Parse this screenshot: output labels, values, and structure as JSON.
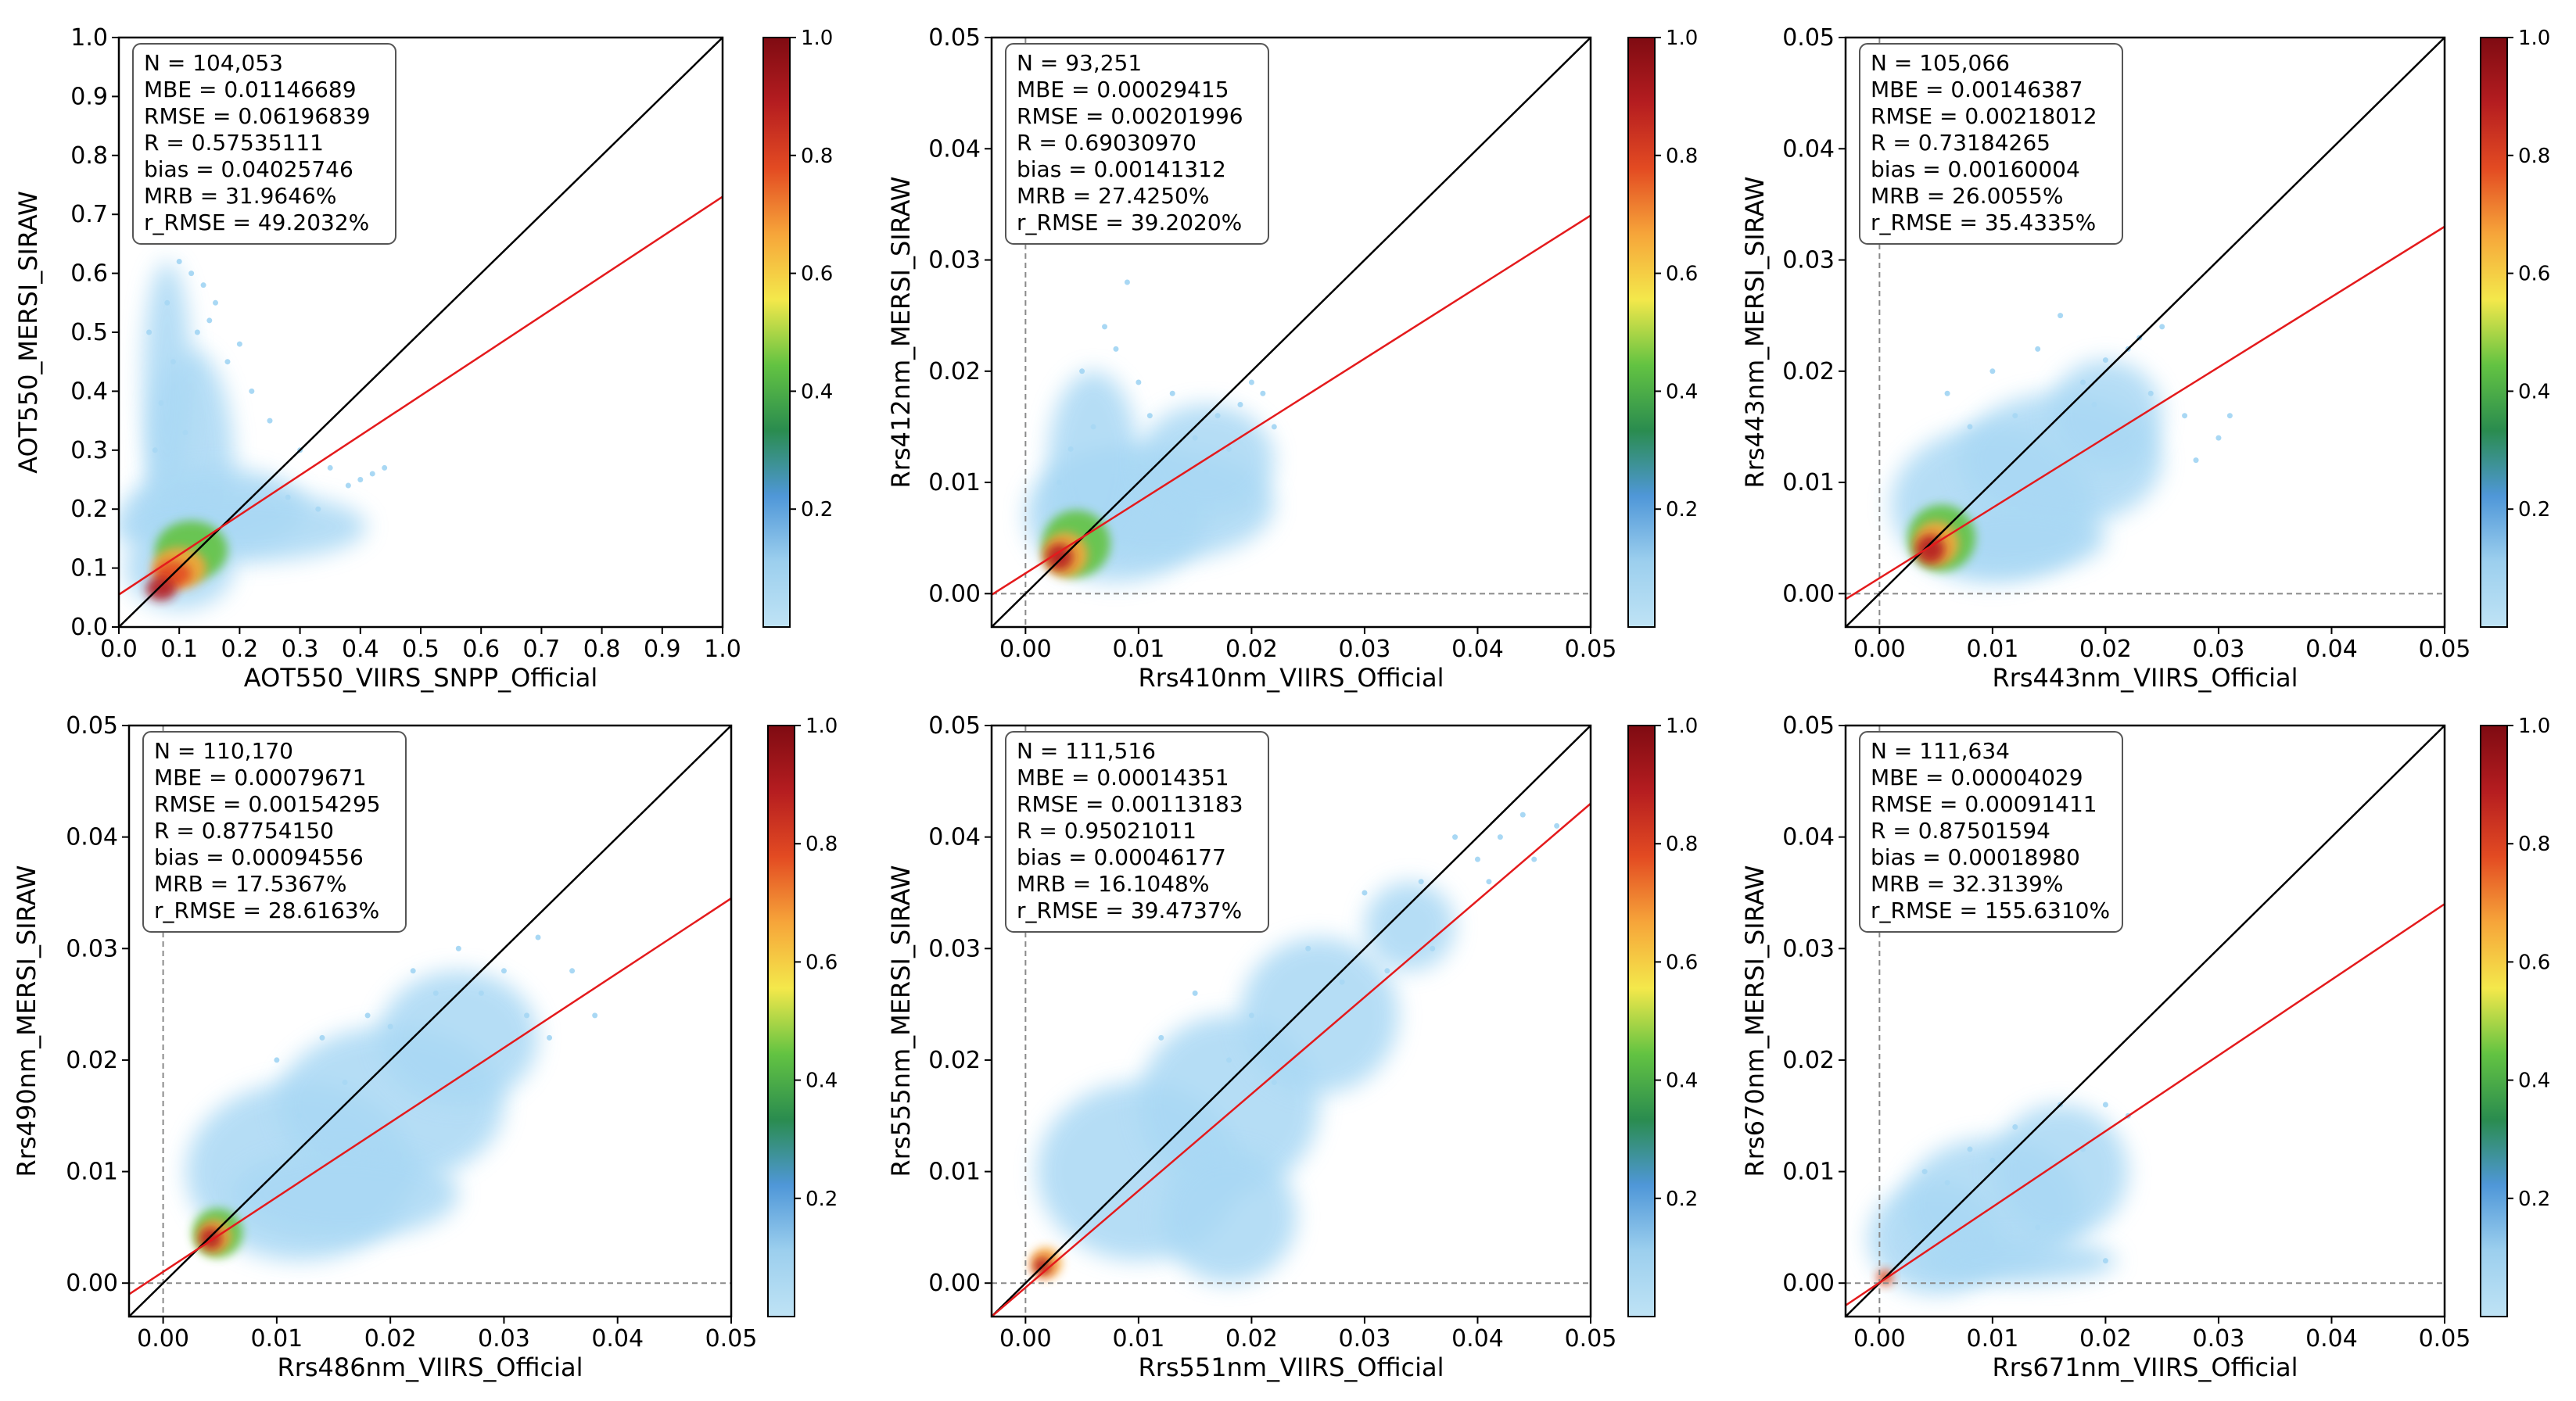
{
  "colorbar": {
    "ticks": [
      0.2,
      0.4,
      0.6,
      0.8,
      1.0
    ],
    "tick_labels": [
      "0.2",
      "0.4",
      "0.6",
      "0.8",
      "1.0"
    ],
    "colormap": [
      "#bfe3f5",
      "#9ccfee",
      "#4f97d8",
      "#2a8c4f",
      "#63c342",
      "#f4e84b",
      "#f6a53a",
      "#e34b22",
      "#b51d20",
      "#7f0b12"
    ]
  },
  "colors": {
    "one_to_one_line": "#000000",
    "fit_line": "#e41a1c",
    "scatter": "#a9d8f4",
    "zero_guides": "#8a8a8a"
  },
  "chart_data": [
    {
      "type": "scatter",
      "xlabel": "AOT550_VIIRS_SNPP_Official",
      "ylabel": "AOT550_MERSI_SIRAW",
      "xlim": [
        0,
        1
      ],
      "ylim": [
        0,
        1
      ],
      "xticks": [
        0,
        0.1,
        0.2,
        0.3,
        0.4,
        0.5,
        0.6,
        0.7,
        0.8,
        0.9,
        1.0
      ],
      "xtick_labels": [
        "0.0",
        "0.1",
        "0.2",
        "0.3",
        "0.4",
        "0.5",
        "0.6",
        "0.7",
        "0.8",
        "0.9",
        "1.0"
      ],
      "yticks": [
        0,
        0.1,
        0.2,
        0.3,
        0.4,
        0.5,
        0.6,
        0.7,
        0.8,
        0.9,
        1.0
      ],
      "ytick_labels": [
        "0.0",
        "0.1",
        "0.2",
        "0.3",
        "0.4",
        "0.5",
        "0.6",
        "0.7",
        "0.8",
        "0.9",
        "1.0"
      ],
      "zero_guides": false,
      "fit_line": [
        [
          0,
          0.055
        ],
        [
          1,
          0.73
        ]
      ],
      "stats": [
        "N = 104,053",
        "MBE = 0.01146689",
        "RMSE = 0.06196839",
        "R = 0.57535111",
        "bias = 0.04025746",
        "MRB = 31.9646%",
        "r_RMSE = 49.2032%"
      ],
      "clouds": [
        {
          "cx": 0.12,
          "cy": 0.28,
          "rx": 0.07,
          "ry": 0.19
        },
        {
          "cx": 0.16,
          "cy": 0.2,
          "rx": 0.15,
          "ry": 0.07
        },
        {
          "cx": 0.2,
          "cy": 0.17,
          "rx": 0.21,
          "ry": 0.06
        },
        {
          "cx": 0.08,
          "cy": 0.42,
          "rx": 0.04,
          "ry": 0.2
        },
        {
          "cx": 0.1,
          "cy": 0.1,
          "rx": 0.09,
          "ry": 0.07
        }
      ],
      "hot": [
        {
          "cx": 0.12,
          "cy": 0.13,
          "rx": 0.06,
          "ry": 0.05,
          "c": "#63c342"
        },
        {
          "cx": 0.1,
          "cy": 0.1,
          "rx": 0.045,
          "ry": 0.035,
          "c": "#f6a53a"
        },
        {
          "cx": 0.09,
          "cy": 0.09,
          "rx": 0.03,
          "ry": 0.022,
          "c": "#e34b22"
        },
        {
          "cx": 0.07,
          "cy": 0.065,
          "rx": 0.025,
          "ry": 0.02,
          "c": "#b51d20"
        }
      ],
      "scatter": {
        "x": [
          0.05,
          0.08,
          0.12,
          0.15,
          0.18,
          0.22,
          0.25,
          0.3,
          0.35,
          0.4,
          0.42,
          0.1,
          0.14,
          0.2,
          0.07,
          0.06,
          0.09,
          0.13,
          0.16,
          0.11,
          0.28,
          0.33,
          0.38,
          0.44
        ],
        "y": [
          0.5,
          0.55,
          0.6,
          0.52,
          0.45,
          0.4,
          0.35,
          0.3,
          0.27,
          0.25,
          0.26,
          0.62,
          0.58,
          0.48,
          0.38,
          0.3,
          0.45,
          0.5,
          0.55,
          0.33,
          0.22,
          0.2,
          0.24,
          0.27
        ]
      }
    },
    {
      "type": "scatter",
      "xlabel": "Rrs410nm_VIIRS_Official",
      "ylabel": "Rrs412nm_MERSI_SIRAW",
      "xlim": [
        -0.003,
        0.05
      ],
      "ylim": [
        -0.003,
        0.05
      ],
      "xticks": [
        0,
        0.01,
        0.02,
        0.03,
        0.04,
        0.05
      ],
      "xtick_labels": [
        "0.00",
        "0.01",
        "0.02",
        "0.03",
        "0.04",
        "0.05"
      ],
      "yticks": [
        0,
        0.01,
        0.02,
        0.03,
        0.04,
        0.05
      ],
      "ytick_labels": [
        "0.00",
        "0.01",
        "0.02",
        "0.03",
        "0.04",
        "0.05"
      ],
      "zero_guides": true,
      "fit_line": [
        [
          -0.003,
          -0.0001
        ],
        [
          0.05,
          0.034
        ]
      ],
      "stats": [
        "N = 93,251",
        "MBE = 0.00029415",
        "RMSE = 0.00201996",
        "R = 0.69030970",
        "bias = 0.00141312",
        "MRB = 27.4250%",
        "r_RMSE = 39.2020%"
      ],
      "clouds": [
        {
          "cx": 0.008,
          "cy": 0.007,
          "rx": 0.008,
          "ry": 0.006
        },
        {
          "cx": 0.012,
          "cy": 0.008,
          "rx": 0.01,
          "ry": 0.005
        },
        {
          "cx": 0.006,
          "cy": 0.012,
          "rx": 0.004,
          "ry": 0.008
        },
        {
          "cx": 0.016,
          "cy": 0.012,
          "rx": 0.006,
          "ry": 0.005
        }
      ],
      "hot": [
        {
          "cx": 0.0045,
          "cy": 0.0045,
          "rx": 0.003,
          "ry": 0.003,
          "c": "#63c342"
        },
        {
          "cx": 0.0035,
          "cy": 0.0035,
          "rx": 0.002,
          "ry": 0.002,
          "c": "#f6a53a"
        },
        {
          "cx": 0.003,
          "cy": 0.0033,
          "rx": 0.0012,
          "ry": 0.0012,
          "c": "#b51d20"
        }
      ],
      "scatter": {
        "x": [
          0.005,
          0.007,
          0.009,
          0.011,
          0.013,
          0.015,
          0.017,
          0.019,
          0.021,
          0.008,
          0.01,
          0.012,
          0.014,
          0.016,
          0.018,
          0.02,
          0.006,
          0.004,
          0.003,
          0.022
        ],
        "y": [
          0.02,
          0.024,
          0.028,
          0.016,
          0.018,
          0.014,
          0.016,
          0.017,
          0.018,
          0.022,
          0.019,
          0.012,
          0.01,
          0.011,
          0.013,
          0.019,
          0.015,
          0.013,
          0.01,
          0.015
        ]
      }
    },
    {
      "type": "scatter",
      "xlabel": "Rrs443nm_VIIRS_Official",
      "ylabel": "Rrs443nm_MERSI_SIRAW",
      "xlim": [
        -0.003,
        0.05
      ],
      "ylim": [
        -0.003,
        0.05
      ],
      "xticks": [
        0,
        0.01,
        0.02,
        0.03,
        0.04,
        0.05
      ],
      "xtick_labels": [
        "0.00",
        "0.01",
        "0.02",
        "0.03",
        "0.04",
        "0.05"
      ],
      "yticks": [
        0,
        0.01,
        0.02,
        0.03,
        0.04,
        0.05
      ],
      "ytick_labels": [
        "0.00",
        "0.01",
        "0.02",
        "0.03",
        "0.04",
        "0.05"
      ],
      "zero_guides": true,
      "fit_line": [
        [
          -0.003,
          -0.0005
        ],
        [
          0.05,
          0.033
        ]
      ],
      "stats": [
        "N = 105,066",
        "MBE = 0.00146387",
        "RMSE = 0.00218012",
        "R = 0.73184265",
        "bias = 0.00160004",
        "MRB = 26.0055%",
        "r_RMSE = 35.4335%"
      ],
      "clouds": [
        {
          "cx": 0.01,
          "cy": 0.008,
          "rx": 0.009,
          "ry": 0.007
        },
        {
          "cx": 0.016,
          "cy": 0.012,
          "rx": 0.009,
          "ry": 0.006
        },
        {
          "cx": 0.02,
          "cy": 0.016,
          "rx": 0.005,
          "ry": 0.005
        },
        {
          "cx": 0.012,
          "cy": 0.005,
          "rx": 0.008,
          "ry": 0.003
        }
      ],
      "hot": [
        {
          "cx": 0.0055,
          "cy": 0.005,
          "rx": 0.003,
          "ry": 0.003,
          "c": "#63c342"
        },
        {
          "cx": 0.005,
          "cy": 0.0045,
          "rx": 0.002,
          "ry": 0.002,
          "c": "#f6a53a"
        },
        {
          "cx": 0.0045,
          "cy": 0.004,
          "rx": 0.0013,
          "ry": 0.0013,
          "c": "#b51d20"
        }
      ],
      "scatter": {
        "x": [
          0.006,
          0.01,
          0.014,
          0.018,
          0.022,
          0.025,
          0.027,
          0.03,
          0.016,
          0.02,
          0.024,
          0.012,
          0.028,
          0.031,
          0.008,
          0.019,
          0.023
        ],
        "y": [
          0.018,
          0.02,
          0.022,
          0.019,
          0.022,
          0.024,
          0.016,
          0.014,
          0.025,
          0.021,
          0.018,
          0.016,
          0.012,
          0.016,
          0.015,
          0.017,
          0.023
        ]
      }
    },
    {
      "type": "scatter",
      "xlabel": "Rrs486nm_VIIRS_Official",
      "ylabel": "Rrs490nm_MERSI_SIRAW",
      "xlim": [
        -0.003,
        0.05
      ],
      "ylim": [
        -0.003,
        0.05
      ],
      "xticks": [
        0,
        0.01,
        0.02,
        0.03,
        0.04,
        0.05
      ],
      "xtick_labels": [
        "0.00",
        "0.01",
        "0.02",
        "0.03",
        "0.04",
        "0.05"
      ],
      "yticks": [
        0,
        0.01,
        0.02,
        0.03,
        0.04,
        0.05
      ],
      "ytick_labels": [
        "0.00",
        "0.01",
        "0.02",
        "0.03",
        "0.04",
        "0.05"
      ],
      "zero_guides": true,
      "fit_line": [
        [
          -0.003,
          -0.001
        ],
        [
          0.05,
          0.0345
        ]
      ],
      "stats": [
        "N = 110,170",
        "MBE = 0.00079671",
        "RMSE = 0.00154295",
        "R = 0.87754150",
        "bias = 0.00094556",
        "MRB = 17.5367%",
        "r_RMSE = 28.6163%"
      ],
      "clouds": [
        {
          "cx": 0.012,
          "cy": 0.01,
          "rx": 0.01,
          "ry": 0.008
        },
        {
          "cx": 0.02,
          "cy": 0.016,
          "rx": 0.01,
          "ry": 0.007
        },
        {
          "cx": 0.026,
          "cy": 0.022,
          "rx": 0.007,
          "ry": 0.006
        },
        {
          "cx": 0.016,
          "cy": 0.008,
          "rx": 0.01,
          "ry": 0.004
        }
      ],
      "hot": [
        {
          "cx": 0.0048,
          "cy": 0.0045,
          "rx": 0.0022,
          "ry": 0.0022,
          "c": "#63c342"
        },
        {
          "cx": 0.0045,
          "cy": 0.0042,
          "rx": 0.0015,
          "ry": 0.0015,
          "c": "#f6a53a"
        },
        {
          "cx": 0.0042,
          "cy": 0.004,
          "rx": 0.001,
          "ry": 0.001,
          "c": "#b51d20"
        }
      ],
      "scatter": {
        "x": [
          0.01,
          0.014,
          0.018,
          0.022,
          0.026,
          0.03,
          0.032,
          0.034,
          0.028,
          0.024,
          0.02,
          0.036,
          0.038,
          0.016,
          0.012,
          0.033
        ],
        "y": [
          0.02,
          0.022,
          0.024,
          0.028,
          0.03,
          0.028,
          0.024,
          0.022,
          0.026,
          0.026,
          0.023,
          0.028,
          0.024,
          0.018,
          0.015,
          0.031
        ]
      }
    },
    {
      "type": "scatter",
      "xlabel": "Rrs551nm_VIIRS_Official",
      "ylabel": "Rrs555nm_MERSI_SIRAW",
      "xlim": [
        -0.003,
        0.05
      ],
      "ylim": [
        -0.003,
        0.05
      ],
      "xticks": [
        0,
        0.01,
        0.02,
        0.03,
        0.04,
        0.05
      ],
      "xtick_labels": [
        "0.00",
        "0.01",
        "0.02",
        "0.03",
        "0.04",
        "0.05"
      ],
      "yticks": [
        0,
        0.01,
        0.02,
        0.03,
        0.04,
        0.05
      ],
      "ytick_labels": [
        "0.00",
        "0.01",
        "0.02",
        "0.03",
        "0.04",
        "0.05"
      ],
      "zero_guides": true,
      "fit_line": [
        [
          -0.003,
          -0.003
        ],
        [
          0.05,
          0.043
        ]
      ],
      "stats": [
        "N = 111,516",
        "MBE = 0.00014351",
        "RMSE = 0.00113183",
        "R = 0.95021011",
        "bias = 0.00046177",
        "MRB = 16.1048%",
        "r_RMSE = 39.4737%"
      ],
      "clouds": [
        {
          "cx": 0.01,
          "cy": 0.01,
          "rx": 0.009,
          "ry": 0.008
        },
        {
          "cx": 0.018,
          "cy": 0.016,
          "rx": 0.008,
          "ry": 0.008
        },
        {
          "cx": 0.026,
          "cy": 0.024,
          "rx": 0.007,
          "ry": 0.007
        },
        {
          "cx": 0.018,
          "cy": 0.006,
          "rx": 0.006,
          "ry": 0.006
        },
        {
          "cx": 0.034,
          "cy": 0.032,
          "rx": 0.004,
          "ry": 0.004
        }
      ],
      "hot": [
        {
          "cx": 0.0018,
          "cy": 0.0018,
          "rx": 0.0014,
          "ry": 0.0014,
          "c": "#f6a53a"
        },
        {
          "cx": 0.0015,
          "cy": 0.0015,
          "rx": 0.0008,
          "ry": 0.0008,
          "c": "#b51d20"
        }
      ],
      "scatter": {
        "x": [
          0.012,
          0.015,
          0.02,
          0.025,
          0.03,
          0.035,
          0.038,
          0.04,
          0.042,
          0.044,
          0.045,
          0.032,
          0.028,
          0.022,
          0.018,
          0.036,
          0.041,
          0.047
        ],
        "y": [
          0.022,
          0.026,
          0.024,
          0.03,
          0.035,
          0.036,
          0.04,
          0.038,
          0.04,
          0.042,
          0.038,
          0.028,
          0.027,
          0.018,
          0.02,
          0.03,
          0.036,
          0.041
        ]
      }
    },
    {
      "type": "scatter",
      "xlabel": "Rrs671nm_VIIRS_Official",
      "ylabel": "Rrs670nm_MERSI_SIRAW",
      "xlim": [
        -0.003,
        0.05
      ],
      "ylim": [
        -0.003,
        0.05
      ],
      "xticks": [
        0,
        0.01,
        0.02,
        0.03,
        0.04,
        0.05
      ],
      "xtick_labels": [
        "0.00",
        "0.01",
        "0.02",
        "0.03",
        "0.04",
        "0.05"
      ],
      "yticks": [
        0,
        0.01,
        0.02,
        0.03,
        0.04,
        0.05
      ],
      "ytick_labels": [
        "0.00",
        "0.01",
        "0.02",
        "0.03",
        "0.04",
        "0.05"
      ],
      "zero_guides": true,
      "fit_line": [
        [
          -0.003,
          -0.002
        ],
        [
          0.05,
          0.034
        ]
      ],
      "stats": [
        "N = 111,634",
        "MBE = 0.00004029",
        "RMSE = 0.00091411",
        "R = 0.87501594",
        "bias = 0.00018980",
        "MRB = 32.3139%",
        "r_RMSE = 155.6310%"
      ],
      "clouds": [
        {
          "cx": 0.005,
          "cy": 0.004,
          "rx": 0.006,
          "ry": 0.005
        },
        {
          "cx": 0.01,
          "cy": 0.007,
          "rx": 0.008,
          "ry": 0.006
        },
        {
          "cx": 0.016,
          "cy": 0.01,
          "rx": 0.006,
          "ry": 0.006
        },
        {
          "cx": 0.012,
          "cy": 0.002,
          "rx": 0.009,
          "ry": 0.002
        }
      ],
      "hot": [
        {
          "cx": 0.0005,
          "cy": 0.0005,
          "rx": 0.0007,
          "ry": 0.0007,
          "c": "#e34b22"
        }
      ],
      "scatter": {
        "x": [
          0.004,
          0.008,
          0.012,
          0.016,
          0.02,
          0.022,
          0.014,
          0.018,
          0.01,
          0.006,
          0.02
        ],
        "y": [
          0.01,
          0.012,
          0.014,
          0.016,
          0.016,
          0.015,
          0.005,
          0.012,
          0.011,
          0.009,
          0.002
        ]
      }
    }
  ]
}
